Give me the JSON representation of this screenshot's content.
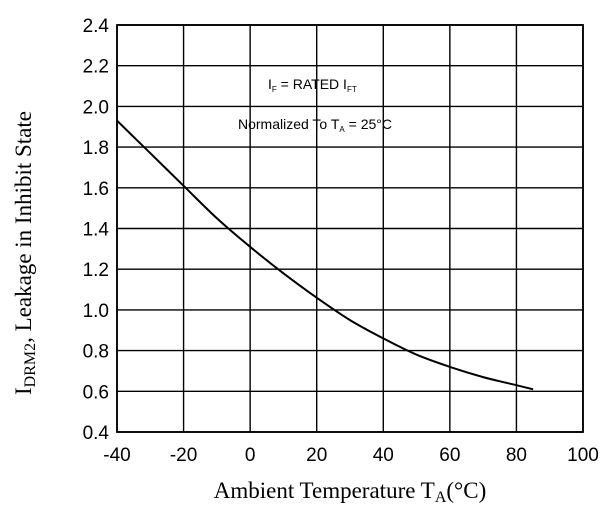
{
  "chart_data": {
    "type": "line",
    "xlabel_main": "Ambient Temperature  T",
    "xlabel_sub": "A",
    "xlabel_tail": "(°C)",
    "ylabel_main": "I",
    "ylabel_sub": "DRM2",
    "ylabel_tail": ", Leakage in Inhibit State",
    "xlim": [
      -40,
      100
    ],
    "ylim": [
      0.4,
      2.4
    ],
    "xticks": [
      -40,
      -20,
      0,
      20,
      40,
      60,
      80,
      100
    ],
    "yticks": [
      0.4,
      0.6,
      0.8,
      1.0,
      1.2,
      1.4,
      1.6,
      1.8,
      2.0,
      2.2,
      2.4
    ],
    "grid": true,
    "annotations": {
      "line1_a": "I",
      "line1_a_sub": "F",
      "line1_b": " = RATED I",
      "line1_b_sub": "FT",
      "line2_a": "Normalized To T",
      "line2_a_sub": "A",
      "line2_b": " = 25°C"
    },
    "series": [
      {
        "x": [
          -40,
          -30,
          -20,
          -10,
          0,
          10,
          20,
          30,
          40,
          50,
          60,
          70,
          80,
          85
        ],
        "y": [
          1.93,
          1.77,
          1.61,
          1.45,
          1.31,
          1.18,
          1.06,
          0.95,
          0.86,
          0.78,
          0.72,
          0.67,
          0.63,
          0.61
        ]
      }
    ]
  }
}
